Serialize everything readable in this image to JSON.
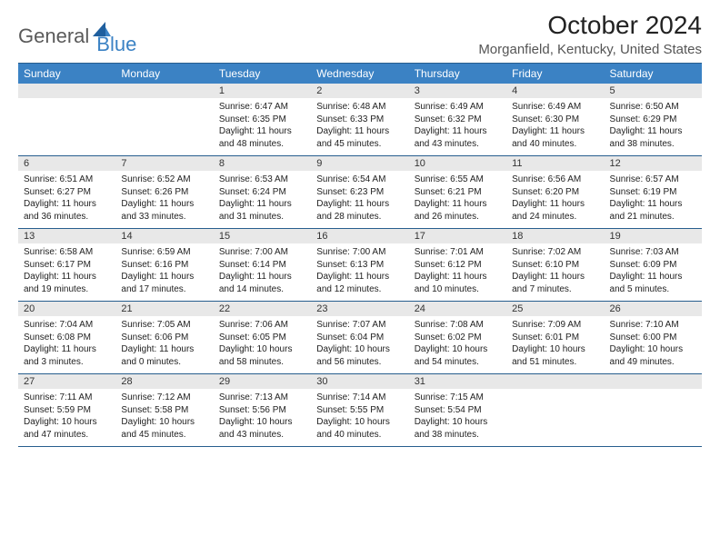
{
  "logo": {
    "text1": "General",
    "text2": "Blue"
  },
  "title": "October 2024",
  "location": "Morganfield, Kentucky, United States",
  "colors": {
    "header_bg": "#3b82c4",
    "header_text": "#ffffff",
    "border": "#275e8e",
    "daynum_bg": "#e8e8e8",
    "body_text": "#222222"
  },
  "day_names": [
    "Sunday",
    "Monday",
    "Tuesday",
    "Wednesday",
    "Thursday",
    "Friday",
    "Saturday"
  ],
  "weeks": [
    [
      {
        "n": "",
        "sr": "",
        "ss": "",
        "dl": ""
      },
      {
        "n": "",
        "sr": "",
        "ss": "",
        "dl": ""
      },
      {
        "n": "1",
        "sr": "Sunrise: 6:47 AM",
        "ss": "Sunset: 6:35 PM",
        "dl": "Daylight: 11 hours and 48 minutes."
      },
      {
        "n": "2",
        "sr": "Sunrise: 6:48 AM",
        "ss": "Sunset: 6:33 PM",
        "dl": "Daylight: 11 hours and 45 minutes."
      },
      {
        "n": "3",
        "sr": "Sunrise: 6:49 AM",
        "ss": "Sunset: 6:32 PM",
        "dl": "Daylight: 11 hours and 43 minutes."
      },
      {
        "n": "4",
        "sr": "Sunrise: 6:49 AM",
        "ss": "Sunset: 6:30 PM",
        "dl": "Daylight: 11 hours and 40 minutes."
      },
      {
        "n": "5",
        "sr": "Sunrise: 6:50 AM",
        "ss": "Sunset: 6:29 PM",
        "dl": "Daylight: 11 hours and 38 minutes."
      }
    ],
    [
      {
        "n": "6",
        "sr": "Sunrise: 6:51 AM",
        "ss": "Sunset: 6:27 PM",
        "dl": "Daylight: 11 hours and 36 minutes."
      },
      {
        "n": "7",
        "sr": "Sunrise: 6:52 AM",
        "ss": "Sunset: 6:26 PM",
        "dl": "Daylight: 11 hours and 33 minutes."
      },
      {
        "n": "8",
        "sr": "Sunrise: 6:53 AM",
        "ss": "Sunset: 6:24 PM",
        "dl": "Daylight: 11 hours and 31 minutes."
      },
      {
        "n": "9",
        "sr": "Sunrise: 6:54 AM",
        "ss": "Sunset: 6:23 PM",
        "dl": "Daylight: 11 hours and 28 minutes."
      },
      {
        "n": "10",
        "sr": "Sunrise: 6:55 AM",
        "ss": "Sunset: 6:21 PM",
        "dl": "Daylight: 11 hours and 26 minutes."
      },
      {
        "n": "11",
        "sr": "Sunrise: 6:56 AM",
        "ss": "Sunset: 6:20 PM",
        "dl": "Daylight: 11 hours and 24 minutes."
      },
      {
        "n": "12",
        "sr": "Sunrise: 6:57 AM",
        "ss": "Sunset: 6:19 PM",
        "dl": "Daylight: 11 hours and 21 minutes."
      }
    ],
    [
      {
        "n": "13",
        "sr": "Sunrise: 6:58 AM",
        "ss": "Sunset: 6:17 PM",
        "dl": "Daylight: 11 hours and 19 minutes."
      },
      {
        "n": "14",
        "sr": "Sunrise: 6:59 AM",
        "ss": "Sunset: 6:16 PM",
        "dl": "Daylight: 11 hours and 17 minutes."
      },
      {
        "n": "15",
        "sr": "Sunrise: 7:00 AM",
        "ss": "Sunset: 6:14 PM",
        "dl": "Daylight: 11 hours and 14 minutes."
      },
      {
        "n": "16",
        "sr": "Sunrise: 7:00 AM",
        "ss": "Sunset: 6:13 PM",
        "dl": "Daylight: 11 hours and 12 minutes."
      },
      {
        "n": "17",
        "sr": "Sunrise: 7:01 AM",
        "ss": "Sunset: 6:12 PM",
        "dl": "Daylight: 11 hours and 10 minutes."
      },
      {
        "n": "18",
        "sr": "Sunrise: 7:02 AM",
        "ss": "Sunset: 6:10 PM",
        "dl": "Daylight: 11 hours and 7 minutes."
      },
      {
        "n": "19",
        "sr": "Sunrise: 7:03 AM",
        "ss": "Sunset: 6:09 PM",
        "dl": "Daylight: 11 hours and 5 minutes."
      }
    ],
    [
      {
        "n": "20",
        "sr": "Sunrise: 7:04 AM",
        "ss": "Sunset: 6:08 PM",
        "dl": "Daylight: 11 hours and 3 minutes."
      },
      {
        "n": "21",
        "sr": "Sunrise: 7:05 AM",
        "ss": "Sunset: 6:06 PM",
        "dl": "Daylight: 11 hours and 0 minutes."
      },
      {
        "n": "22",
        "sr": "Sunrise: 7:06 AM",
        "ss": "Sunset: 6:05 PM",
        "dl": "Daylight: 10 hours and 58 minutes."
      },
      {
        "n": "23",
        "sr": "Sunrise: 7:07 AM",
        "ss": "Sunset: 6:04 PM",
        "dl": "Daylight: 10 hours and 56 minutes."
      },
      {
        "n": "24",
        "sr": "Sunrise: 7:08 AM",
        "ss": "Sunset: 6:02 PM",
        "dl": "Daylight: 10 hours and 54 minutes."
      },
      {
        "n": "25",
        "sr": "Sunrise: 7:09 AM",
        "ss": "Sunset: 6:01 PM",
        "dl": "Daylight: 10 hours and 51 minutes."
      },
      {
        "n": "26",
        "sr": "Sunrise: 7:10 AM",
        "ss": "Sunset: 6:00 PM",
        "dl": "Daylight: 10 hours and 49 minutes."
      }
    ],
    [
      {
        "n": "27",
        "sr": "Sunrise: 7:11 AM",
        "ss": "Sunset: 5:59 PM",
        "dl": "Daylight: 10 hours and 47 minutes."
      },
      {
        "n": "28",
        "sr": "Sunrise: 7:12 AM",
        "ss": "Sunset: 5:58 PM",
        "dl": "Daylight: 10 hours and 45 minutes."
      },
      {
        "n": "29",
        "sr": "Sunrise: 7:13 AM",
        "ss": "Sunset: 5:56 PM",
        "dl": "Daylight: 10 hours and 43 minutes."
      },
      {
        "n": "30",
        "sr": "Sunrise: 7:14 AM",
        "ss": "Sunset: 5:55 PM",
        "dl": "Daylight: 10 hours and 40 minutes."
      },
      {
        "n": "31",
        "sr": "Sunrise: 7:15 AM",
        "ss": "Sunset: 5:54 PM",
        "dl": "Daylight: 10 hours and 38 minutes."
      },
      {
        "n": "",
        "sr": "",
        "ss": "",
        "dl": ""
      },
      {
        "n": "",
        "sr": "",
        "ss": "",
        "dl": ""
      }
    ]
  ]
}
